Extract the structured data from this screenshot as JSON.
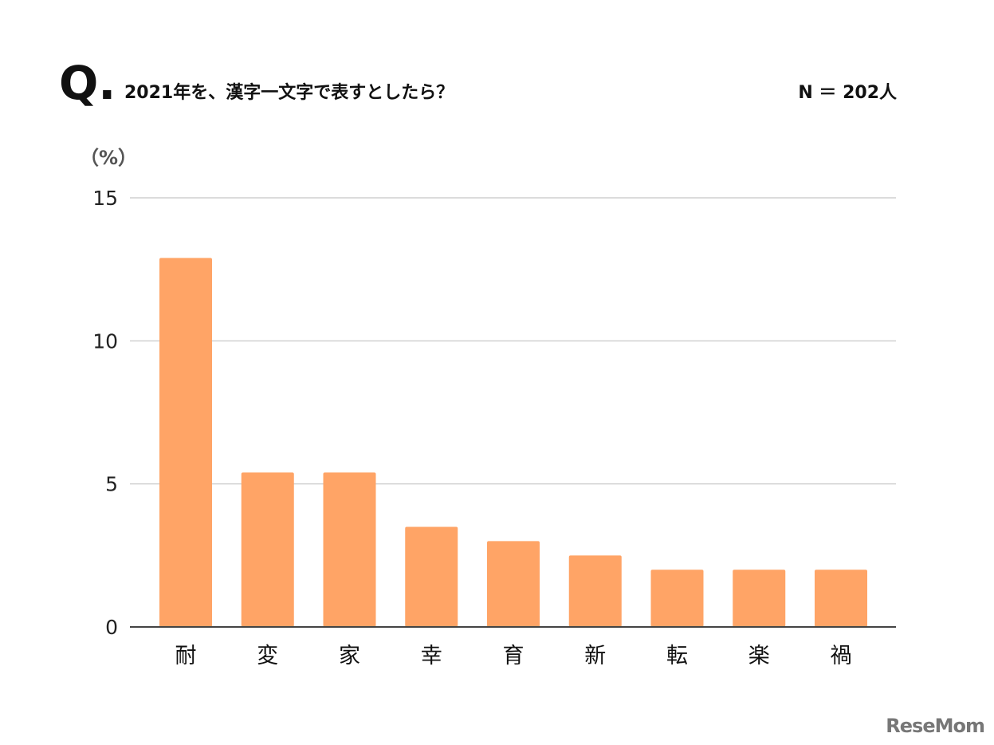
{
  "header": {
    "q_mark": "Q.",
    "question": "2021年を、漢字一文字で表すとしたら？",
    "sample": "N ＝ 202人"
  },
  "logo": "ReseMom",
  "chart_data": {
    "type": "bar",
    "title": "2021年を、漢字一文字で表すとしたら？",
    "ylabel": "（%）",
    "xlabel": "",
    "categories": [
      "耐",
      "変",
      "家",
      "幸",
      "育",
      "新",
      "転",
      "楽",
      "禍"
    ],
    "values": [
      12.9,
      5.4,
      5.4,
      3.5,
      3.0,
      2.5,
      2.0,
      2.0,
      2.0
    ],
    "ylim": [
      0,
      15
    ],
    "yticks": [
      0,
      5,
      10,
      15
    ],
    "grid": true,
    "bar_color": "#FFA466"
  }
}
